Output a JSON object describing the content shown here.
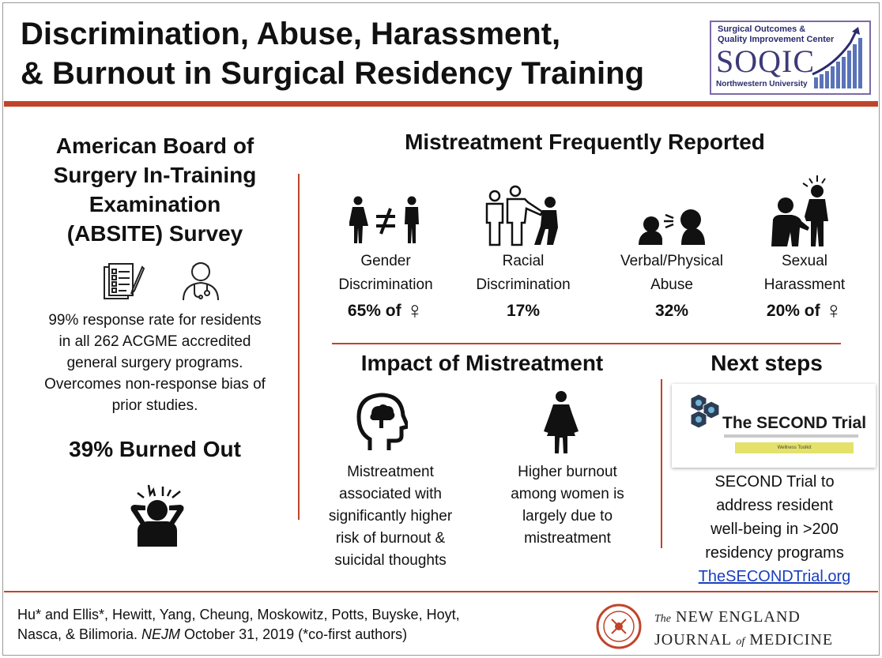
{
  "title": {
    "line1": "Discrimination, Abuse, Harassment,",
    "line2": "& Burnout in Surgical Residency Training"
  },
  "logo": {
    "line1": "Surgical Outcomes &",
    "line2": "Quality Improvement Center",
    "name": "SOQIC",
    "university": "Northwestern University"
  },
  "survey": {
    "heading_lines": [
      "American Board of",
      "Surgery In-Training",
      "Examination",
      "(ABSITE) Survey"
    ],
    "description_lines": [
      "99% response rate for residents",
      "in all 262 ACGME accredited",
      "general surgery programs.",
      "Overcomes non-response bias of",
      "prior studies."
    ],
    "burnout": "39% Burned Out",
    "icons": [
      "survey-document-icon",
      "doctor-icon",
      "burned-out-person-icon"
    ]
  },
  "mistreatment": {
    "heading": "Mistreatment Frequently Reported",
    "items": [
      {
        "line1": "Gender",
        "line2": "Discrimination",
        "value": "65% of",
        "female_symbol": "♀",
        "icon": "gender-inequality-icon"
      },
      {
        "line1": "Racial",
        "line2": "Discrimination",
        "value": "17%",
        "female_symbol": "",
        "icon": "racial-discrimination-icon"
      },
      {
        "line1": "Verbal/Physical",
        "line2": "Abuse",
        "value": "32%",
        "female_symbol": "",
        "icon": "verbal-abuse-icon"
      },
      {
        "line1": "Sexual",
        "line2": "Harassment",
        "value": "20% of",
        "female_symbol": "♀",
        "icon": "sexual-harassment-icon"
      }
    ]
  },
  "impact": {
    "heading": "Impact of Mistreatment",
    "items": [
      {
        "lines": [
          "Mistreatment",
          "associated with",
          "significantly higher",
          "risk of burnout &",
          "suicidal thoughts"
        ],
        "icon": "brain-head-icon"
      },
      {
        "lines": [
          "Higher burnout",
          "among women is",
          "largely due to",
          "mistreatment"
        ],
        "icon": "woman-icon"
      }
    ]
  },
  "next_steps": {
    "heading": "Next steps",
    "image_title": "The SECOND Trial",
    "image_button": "Wellness Toolkit",
    "lines": [
      "SECOND Trial to",
      "address resident",
      "well-being in >200",
      "residency programs"
    ],
    "link": "TheSECONDTrial.org"
  },
  "citation": {
    "line1": "Hu* and Ellis*, Hewitt, Yang, Cheung, Moskowitz, Potts, Buyske, Hoyt,",
    "line2_a": "Nasca, & Bilimoria. ",
    "line2_journal": "NEJM",
    "line2_b": " October 31, 2019 (*co-first authors)"
  },
  "journal": {
    "the": "The",
    "line1": "NEW ENGLAND",
    "line2_a": "JOURNAL ",
    "of": "of",
    "line2_b": " MEDICINE"
  },
  "colors": {
    "rule": "#c0442a",
    "link": "#1a3fbf",
    "logo_text": "#3d3a78"
  }
}
